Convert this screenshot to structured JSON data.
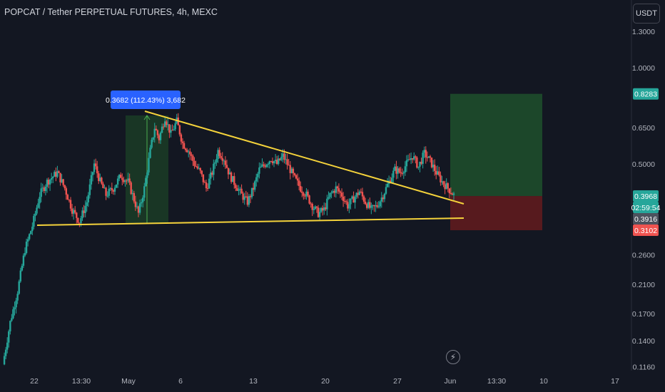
{
  "header": {
    "title": "POPCAT / Tether PERPETUAL FUTURES, 4h, MEXC",
    "currency_button": "USDT"
  },
  "colors": {
    "background": "#131722",
    "bull": "#26a69a",
    "bear": "#ef5350",
    "trendline": "#f5d33b",
    "target_zone": "#1e4d2b",
    "stop_zone": "#5b1a1f",
    "measure_box": "#1b3a26",
    "measure_label": "#2962ff"
  },
  "chart_data": {
    "type": "candlestick",
    "y_scale": "log",
    "price_axis_labels": [
      "1.3000",
      "1.0000",
      "0.6500",
      "0.5000",
      "0.2600",
      "0.2100",
      "0.1700",
      "0.1400",
      "0.1160"
    ],
    "time_axis_labels": [
      "22",
      "13:30",
      "May",
      "6",
      "13",
      "20",
      "27",
      "Jun",
      "13:30",
      "10",
      "17"
    ],
    "price_badges": [
      {
        "label": "0.8283",
        "price": 0.8283,
        "color": "#26a69a"
      },
      {
        "label": "0.3968",
        "price": 0.3968,
        "color": "#26a69a"
      },
      {
        "label": "02:59:54",
        "price": 0.382,
        "color": "#26a69a"
      },
      {
        "label": "0.3916",
        "price": 0.3916,
        "color": "#4c525e"
      },
      {
        "label": "0.3102",
        "price": 0.3102,
        "color": "#ef5350"
      }
    ],
    "measure_label": "0.3682 (112.43%) 3,682",
    "position": {
      "entry": 0.3968,
      "target": 0.8283,
      "stop": 0.3102
    },
    "waypoints": [
      [
        0,
        0.118
      ],
      [
        5,
        0.16
      ],
      [
        10,
        0.2
      ],
      [
        15,
        0.27
      ],
      [
        20,
        0.32
      ],
      [
        25,
        0.4
      ],
      [
        30,
        0.44
      ],
      [
        37,
        0.47
      ],
      [
        42,
        0.42
      ],
      [
        47,
        0.36
      ],
      [
        52,
        0.33
      ],
      [
        57,
        0.38
      ],
      [
        62,
        0.5
      ],
      [
        66,
        0.44
      ],
      [
        70,
        0.4
      ],
      [
        75,
        0.42
      ],
      [
        80,
        0.46
      ],
      [
        85,
        0.44
      ],
      [
        88,
        0.4
      ],
      [
        92,
        0.35
      ],
      [
        96,
        0.42
      ],
      [
        100,
        0.55
      ],
      [
        103,
        0.65
      ],
      [
        106,
        0.6
      ],
      [
        110,
        0.7
      ],
      [
        114,
        0.62
      ],
      [
        118,
        0.68
      ],
      [
        122,
        0.58
      ],
      [
        126,
        0.55
      ],
      [
        130,
        0.5
      ],
      [
        134,
        0.47
      ],
      [
        138,
        0.42
      ],
      [
        142,
        0.47
      ],
      [
        146,
        0.55
      ],
      [
        150,
        0.52
      ],
      [
        154,
        0.46
      ],
      [
        158,
        0.43
      ],
      [
        162,
        0.4
      ],
      [
        166,
        0.38
      ],
      [
        170,
        0.42
      ],
      [
        174,
        0.48
      ],
      [
        178,
        0.5
      ],
      [
        182,
        0.52
      ],
      [
        186,
        0.5
      ],
      [
        190,
        0.53
      ],
      [
        194,
        0.49
      ],
      [
        198,
        0.45
      ],
      [
        202,
        0.42
      ],
      [
        206,
        0.4
      ],
      [
        210,
        0.37
      ],
      [
        214,
        0.35
      ],
      [
        218,
        0.36
      ],
      [
        222,
        0.4
      ],
      [
        226,
        0.42
      ],
      [
        230,
        0.4
      ],
      [
        234,
        0.37
      ],
      [
        238,
        0.39
      ],
      [
        242,
        0.41
      ],
      [
        246,
        0.38
      ],
      [
        250,
        0.36
      ],
      [
        254,
        0.37
      ],
      [
        258,
        0.4
      ],
      [
        262,
        0.44
      ],
      [
        266,
        0.48
      ],
      [
        270,
        0.47
      ],
      [
        274,
        0.5
      ],
      [
        278,
        0.53
      ],
      [
        282,
        0.49
      ],
      [
        286,
        0.54
      ],
      [
        290,
        0.51
      ],
      [
        294,
        0.47
      ],
      [
        298,
        0.44
      ],
      [
        302,
        0.42
      ],
      [
        306,
        0.4
      ]
    ]
  }
}
